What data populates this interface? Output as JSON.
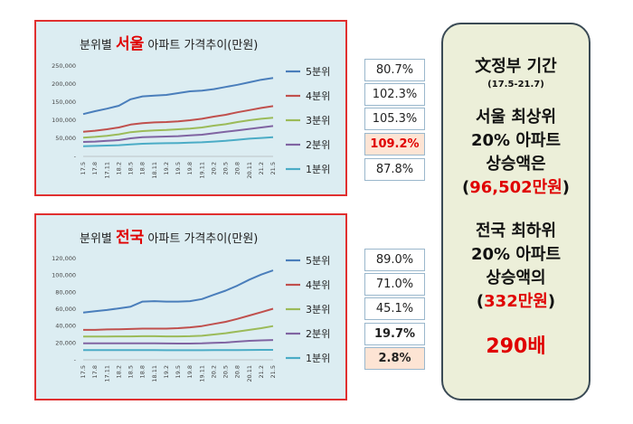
{
  "chart_data": [
    {
      "type": "line",
      "title_prefix": "분위별",
      "title_region": "서울",
      "title_suffix": "아파트 가격추이(만원)",
      "x": [
        "17.5",
        "17.8",
        "17.11",
        "18.2",
        "18.5",
        "18.8",
        "18.11",
        "19.2",
        "19.5",
        "19.8",
        "19.11",
        "20.2",
        "20.5",
        "20.8",
        "20.11",
        "21.2",
        "21.5"
      ],
      "ylim": [
        0,
        250000
      ],
      "yticks": [
        "-",
        "50,000",
        "100,000",
        "150,000",
        "200,000",
        "250,000"
      ],
      "ytick_values": [
        0,
        50000,
        100000,
        150000,
        200000,
        250000
      ],
      "series": [
        {
          "name": "5분위",
          "color": "#4a7ebb",
          "values": [
            117000,
            125000,
            132000,
            140000,
            158000,
            166000,
            168000,
            170000,
            175000,
            180000,
            182000,
            186000,
            192000,
            198000,
            205000,
            212000,
            217000
          ]
        },
        {
          "name": "4분위",
          "color": "#c0504d",
          "values": [
            68000,
            71000,
            75000,
            80000,
            88000,
            92000,
            94000,
            95000,
            97000,
            100000,
            104000,
            110000,
            115000,
            122000,
            128000,
            134000,
            139000
          ]
        },
        {
          "name": "3분위",
          "color": "#9bbb59",
          "values": [
            52000,
            54000,
            57000,
            61000,
            67000,
            70000,
            72000,
            73000,
            75000,
            77000,
            80000,
            85000,
            89000,
            95000,
            100000,
            104000,
            107000
          ]
        },
        {
          "name": "2분위",
          "color": "#8064a2",
          "values": [
            40000,
            41000,
            43000,
            45000,
            50000,
            53000,
            54000,
            55000,
            56000,
            58000,
            60000,
            64000,
            68000,
            72000,
            76000,
            80000,
            84000
          ]
        },
        {
          "name": "1분위",
          "color": "#4bacc6",
          "values": [
            28000,
            29000,
            30000,
            31000,
            33000,
            35000,
            36000,
            36500,
            37000,
            38000,
            39000,
            41000,
            43000,
            46000,
            49000,
            51000,
            53000
          ]
        }
      ]
    },
    {
      "type": "line",
      "title_prefix": "분위별",
      "title_region": "전국",
      "title_suffix": "아파트 가격추이(만원)",
      "x": [
        "17.5",
        "17.8",
        "17.11",
        "18.2",
        "18.5",
        "18.8",
        "18.11",
        "19.2",
        "19.5",
        "19.8",
        "19.11",
        "20.2",
        "20.5",
        "20.8",
        "20.11",
        "21.2",
        "21.5"
      ],
      "ylim": [
        0,
        120000
      ],
      "yticks": [
        "-",
        "20,000",
        "40,000",
        "60,000",
        "80,000",
        "100,000",
        "120,000"
      ],
      "ytick_values": [
        0,
        20000,
        40000,
        60000,
        80000,
        100000,
        120000
      ],
      "series": [
        {
          "name": "5분위",
          "color": "#4a7ebb",
          "values": [
            56000,
            57500,
            59000,
            61000,
            63000,
            69000,
            69500,
            69000,
            69000,
            69500,
            72000,
            77000,
            82000,
            88000,
            95000,
            101000,
            106000
          ]
        },
        {
          "name": "4분위",
          "color": "#c0504d",
          "values": [
            35500,
            35500,
            36000,
            36200,
            36500,
            37000,
            37000,
            37000,
            37500,
            38500,
            40000,
            42500,
            45000,
            48500,
            52500,
            56500,
            60500
          ]
        },
        {
          "name": "3분위",
          "color": "#9bbb59",
          "values": [
            27500,
            27500,
            27600,
            27700,
            27800,
            28000,
            28000,
            27800,
            27800,
            28000,
            28500,
            30000,
            31500,
            33500,
            35500,
            37500,
            40000
          ]
        },
        {
          "name": "2분위",
          "color": "#8064a2",
          "values": [
            19500,
            19500,
            19500,
            19500,
            19500,
            19500,
            19500,
            19400,
            19300,
            19300,
            19500,
            20000,
            20500,
            21500,
            22500,
            23000,
            23500
          ]
        },
        {
          "name": "1분위",
          "color": "#4bacc6",
          "values": [
            11500,
            11500,
            11500,
            11500,
            11500,
            11500,
            11500,
            11400,
            11400,
            11400,
            11400,
            11500,
            11500,
            11600,
            11700,
            11800,
            11800
          ]
        }
      ]
    }
  ],
  "pct_seoul": [
    {
      "value": "80.7%",
      "style": ""
    },
    {
      "value": "102.3%",
      "style": ""
    },
    {
      "value": "105.3%",
      "style": ""
    },
    {
      "value": "109.2%",
      "style": "hl red"
    },
    {
      "value": "87.8%",
      "style": ""
    }
  ],
  "pct_national": [
    {
      "value": "89.0%",
      "style": ""
    },
    {
      "value": "71.0%",
      "style": ""
    },
    {
      "value": "45.1%",
      "style": ""
    },
    {
      "value": "19.7%",
      "style": "bold"
    },
    {
      "value": "2.8%",
      "style": "hl bold"
    }
  ],
  "summary": {
    "title": "文정부 기간",
    "period": "(17.5-21.7)",
    "seoul_line1": "서울 최상위",
    "seoul_line2": "20% 아파트",
    "seoul_line3": "상승액은",
    "seoul_amount": "(96,502만원)",
    "national_line1": "전국 최하위",
    "national_line2": "20% 아파트",
    "national_line3": "상승액의",
    "national_amount": "(332만원)",
    "ratio": "290배"
  }
}
